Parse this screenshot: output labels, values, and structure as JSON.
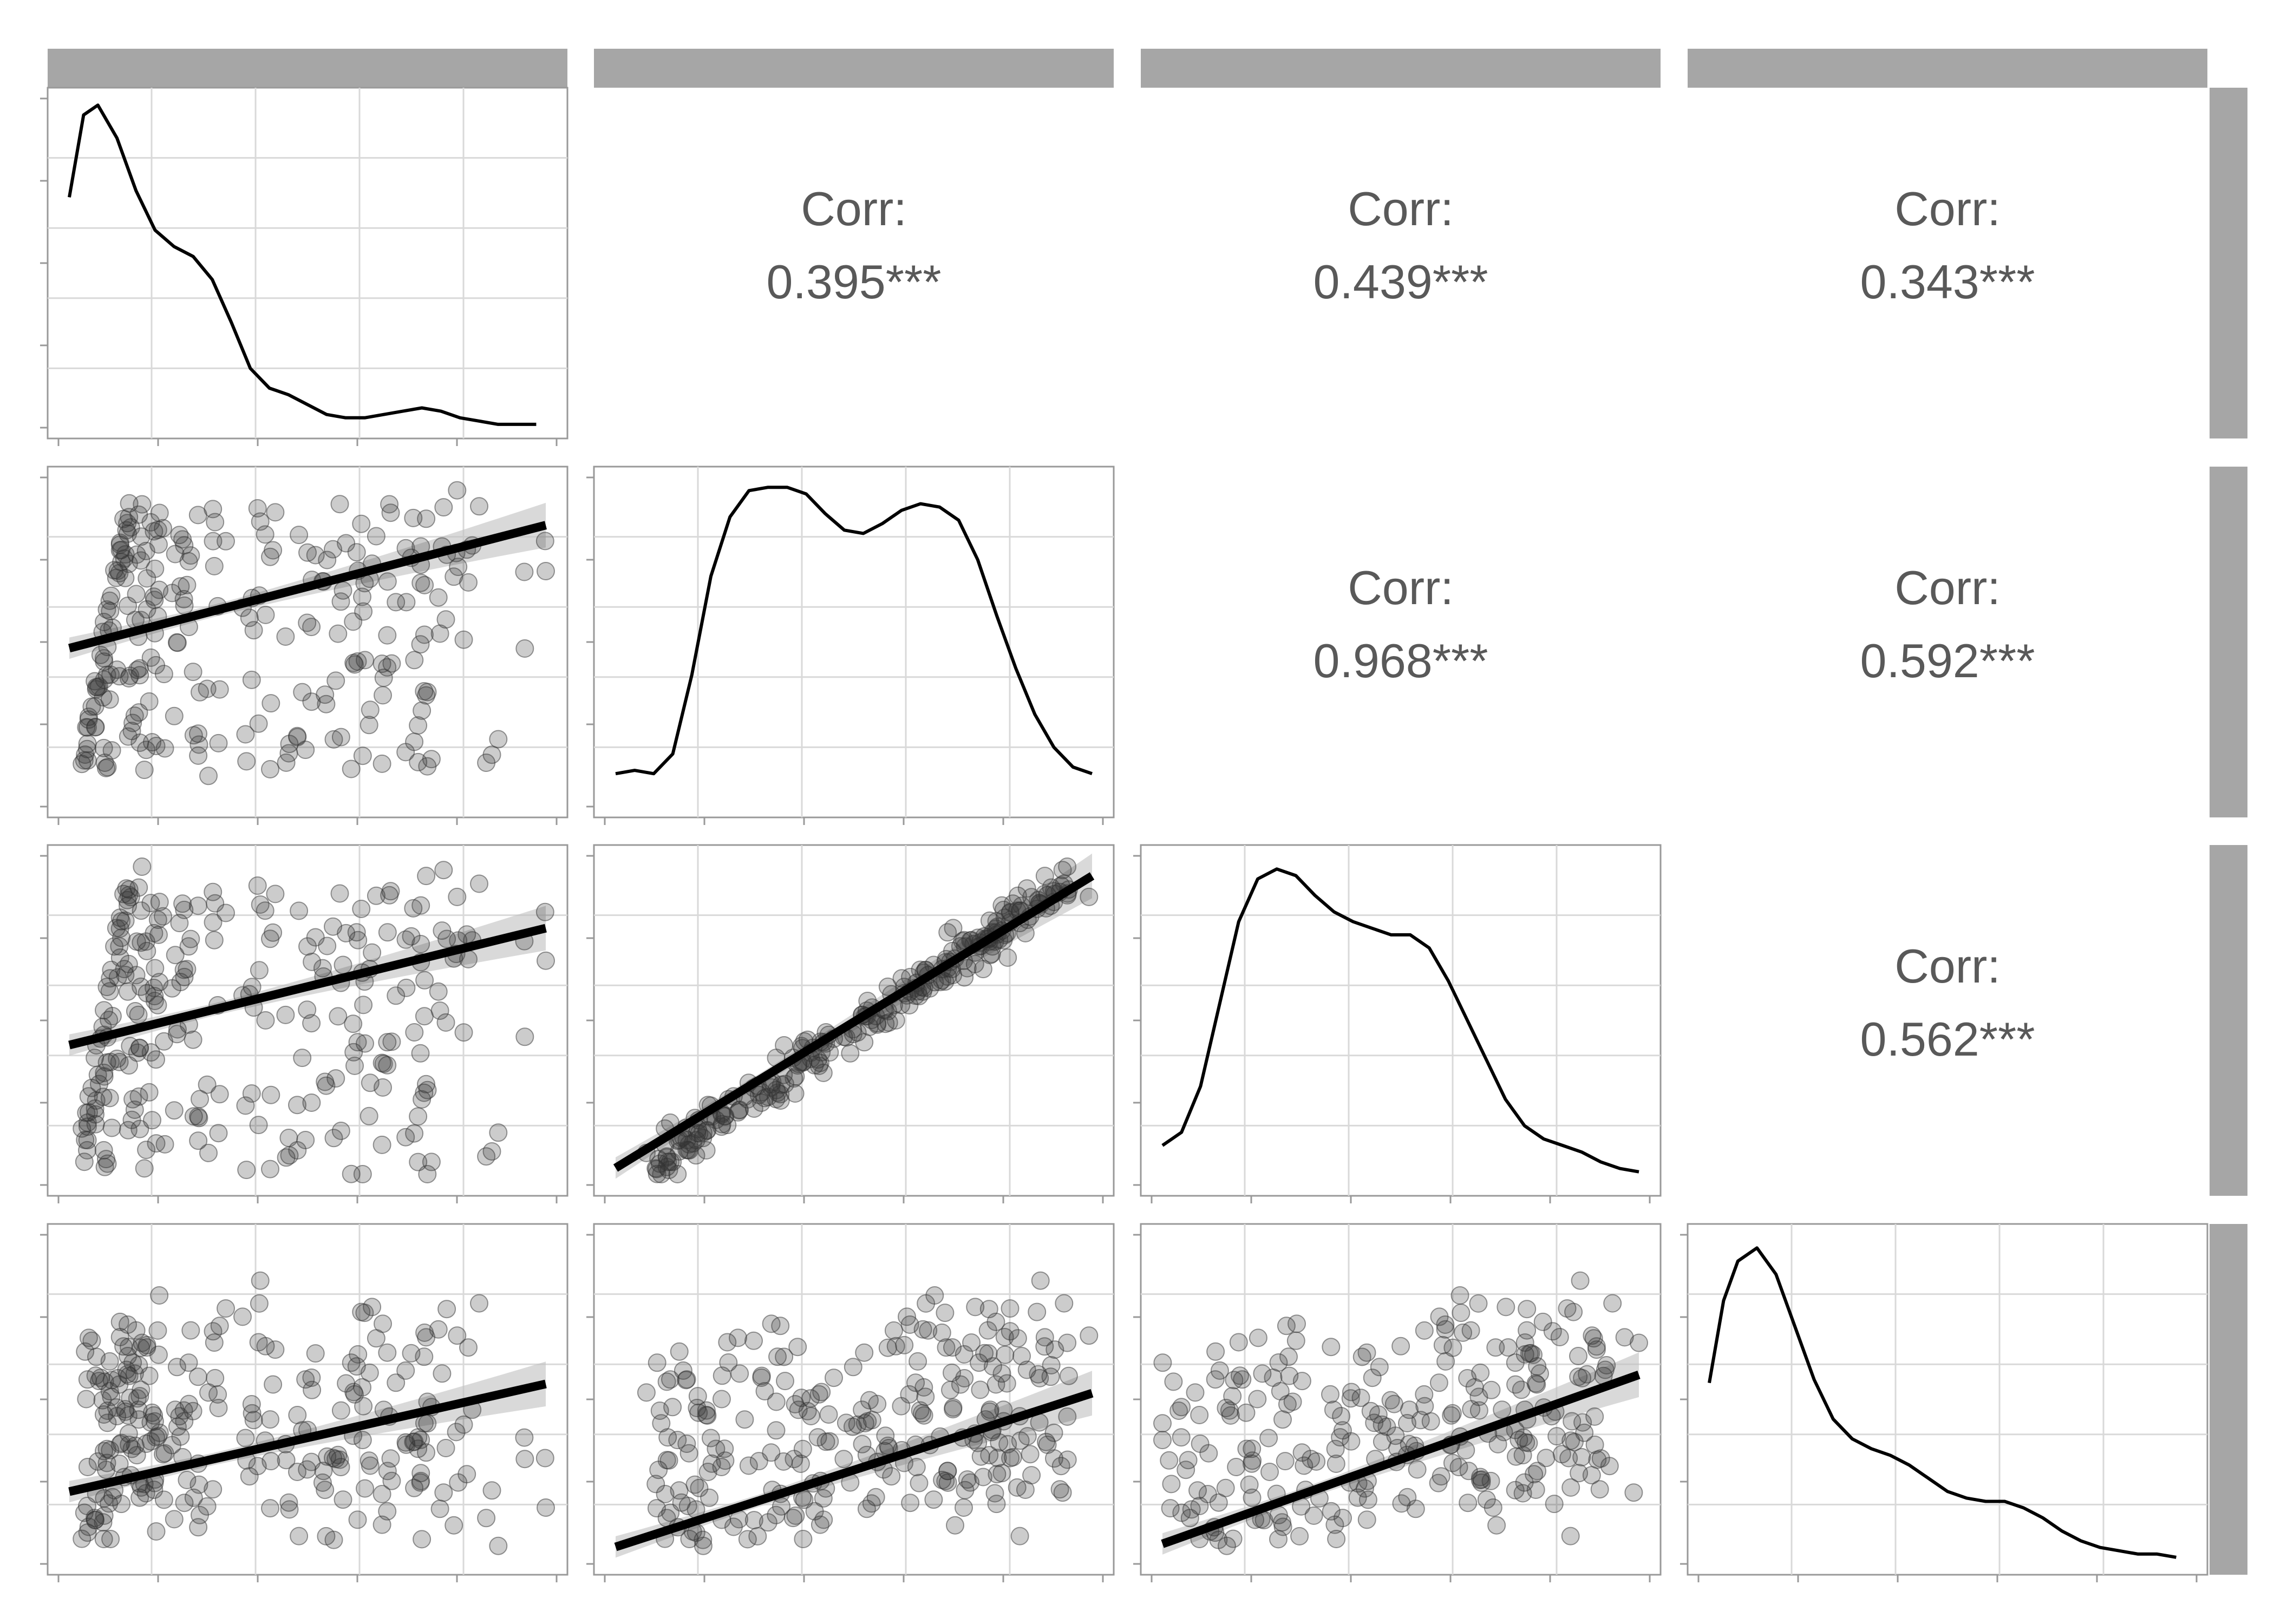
{
  "chart_data": {
    "type": "scatter",
    "layout": "pairs-matrix",
    "title": "",
    "n_vars": 4,
    "variables": [
      "",
      "",
      "",
      ""
    ],
    "strip_labels": {
      "top": [
        "",
        "",
        "",
        ""
      ],
      "right": [
        "",
        "",
        "",
        ""
      ]
    },
    "corr_prefix": "Corr:",
    "correlations": [
      {
        "row": 1,
        "col": 2,
        "value": "0.395***"
      },
      {
        "row": 1,
        "col": 3,
        "value": "0.439***"
      },
      {
        "row": 1,
        "col": 4,
        "value": "0.343***"
      },
      {
        "row": 2,
        "col": 3,
        "value": "0.968***"
      },
      {
        "row": 2,
        "col": 4,
        "value": "0.592***"
      },
      {
        "row": 3,
        "col": 4,
        "value": "0.562***"
      }
    ],
    "densities": [
      {
        "var": 1,
        "x": [
          0.0,
          0.03,
          0.06,
          0.1,
          0.14,
          0.18,
          0.22,
          0.26,
          0.3,
          0.34,
          0.38,
          0.42,
          0.46,
          0.5,
          0.54,
          0.58,
          0.62,
          0.66,
          0.7,
          0.74,
          0.78,
          0.82,
          0.86,
          0.9,
          0.94,
          0.98
        ],
        "y": [
          0.7,
          0.95,
          0.98,
          0.88,
          0.72,
          0.6,
          0.55,
          0.52,
          0.45,
          0.32,
          0.18,
          0.12,
          0.1,
          0.07,
          0.04,
          0.03,
          0.03,
          0.04,
          0.05,
          0.06,
          0.05,
          0.03,
          0.02,
          0.01,
          0.01,
          0.01
        ]
      },
      {
        "var": 2,
        "x": [
          0.0,
          0.04,
          0.08,
          0.12,
          0.16,
          0.2,
          0.24,
          0.28,
          0.32,
          0.36,
          0.4,
          0.44,
          0.48,
          0.52,
          0.56,
          0.6,
          0.64,
          0.68,
          0.72,
          0.76,
          0.8,
          0.84,
          0.88,
          0.92,
          0.96,
          1.0
        ],
        "y": [
          0.1,
          0.11,
          0.1,
          0.16,
          0.4,
          0.7,
          0.88,
          0.96,
          0.97,
          0.97,
          0.95,
          0.89,
          0.84,
          0.83,
          0.86,
          0.9,
          0.92,
          0.91,
          0.87,
          0.75,
          0.58,
          0.42,
          0.28,
          0.18,
          0.12,
          0.1
        ]
      },
      {
        "var": 3,
        "x": [
          0.0,
          0.04,
          0.08,
          0.12,
          0.16,
          0.2,
          0.24,
          0.28,
          0.32,
          0.36,
          0.4,
          0.44,
          0.48,
          0.52,
          0.56,
          0.6,
          0.64,
          0.68,
          0.72,
          0.76,
          0.8,
          0.84,
          0.88,
          0.92,
          0.96,
          1.0
        ],
        "y": [
          0.12,
          0.16,
          0.3,
          0.55,
          0.8,
          0.93,
          0.96,
          0.94,
          0.88,
          0.83,
          0.8,
          0.78,
          0.76,
          0.76,
          0.72,
          0.62,
          0.5,
          0.38,
          0.26,
          0.18,
          0.14,
          0.12,
          0.1,
          0.07,
          0.05,
          0.04
        ]
      },
      {
        "var": 4,
        "x": [
          0.0,
          0.03,
          0.06,
          0.1,
          0.14,
          0.18,
          0.22,
          0.26,
          0.3,
          0.34,
          0.38,
          0.42,
          0.46,
          0.5,
          0.54,
          0.58,
          0.62,
          0.66,
          0.7,
          0.74,
          0.78,
          0.82,
          0.86,
          0.9,
          0.94,
          0.98
        ],
        "y": [
          0.55,
          0.8,
          0.92,
          0.96,
          0.88,
          0.72,
          0.56,
          0.44,
          0.38,
          0.35,
          0.33,
          0.3,
          0.26,
          0.22,
          0.2,
          0.19,
          0.19,
          0.17,
          0.14,
          0.1,
          0.07,
          0.05,
          0.04,
          0.03,
          0.03,
          0.02
        ]
      }
    ],
    "scatter_points": 260,
    "alpha": 0.25,
    "fit_lines": [
      {
        "row": 2,
        "col": 1,
        "intercept": 0.48,
        "slope": 0.4
      },
      {
        "row": 3,
        "col": 1,
        "intercept": 0.42,
        "slope": 0.38
      },
      {
        "row": 3,
        "col": 2,
        "intercept": 0.02,
        "slope": 0.95
      },
      {
        "row": 4,
        "col": 1,
        "intercept": 0.2,
        "slope": 0.35
      },
      {
        "row": 4,
        "col": 2,
        "intercept": 0.02,
        "slope": 0.5
      },
      {
        "row": 4,
        "col": 3,
        "intercept": 0.03,
        "slope": 0.55
      }
    ],
    "grid": true,
    "colors": {
      "points": "#333333",
      "line": "#000000",
      "ribbon": "#bfbfbf",
      "strip": "#a6a6a6",
      "grid": "#d9d9d9",
      "frame": "#999999",
      "text": "#595959"
    }
  }
}
